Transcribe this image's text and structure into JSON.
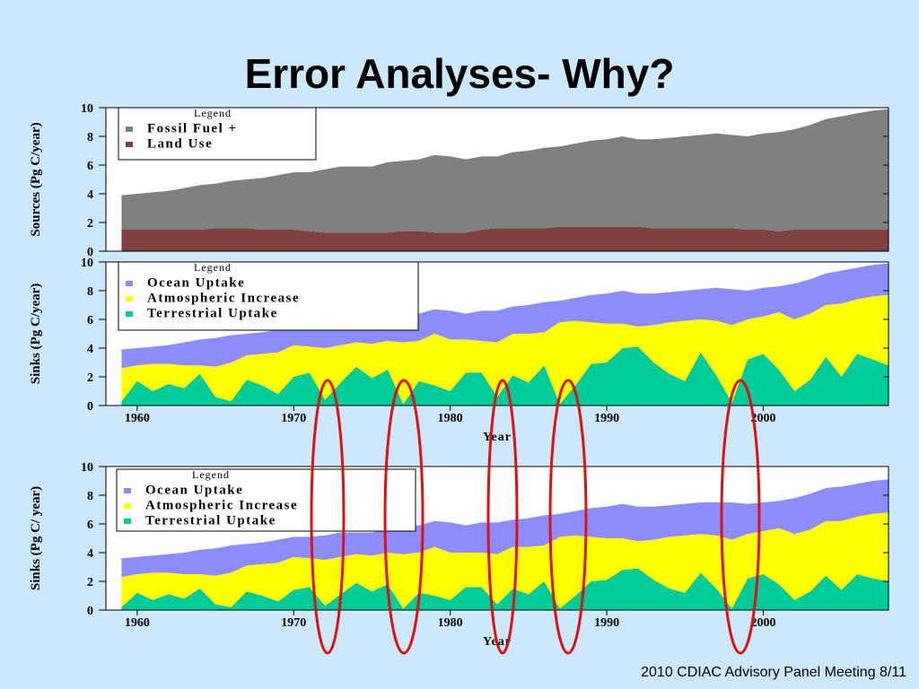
{
  "title": "Error Analyses- Why?",
  "footer": "2010 CDIAC Advisory Panel Meeting 8/11",
  "chart_data": [
    {
      "type": "area",
      "stacked": true,
      "ylabel": "Sources (Pg C/year)",
      "legend_title": "Legend",
      "x": [
        1959,
        1960,
        1961,
        1962,
        1963,
        1964,
        1965,
        1966,
        1967,
        1968,
        1969,
        1970,
        1971,
        1972,
        1973,
        1974,
        1975,
        1976,
        1977,
        1978,
        1979,
        1980,
        1981,
        1982,
        1983,
        1984,
        1985,
        1986,
        1987,
        1988,
        1989,
        1990,
        1991,
        1992,
        1993,
        1994,
        1995,
        1996,
        1997,
        1998,
        1999,
        2000,
        2001,
        2002,
        2003,
        2004,
        2005,
        2006,
        2007,
        2008
      ],
      "xlim": [
        1958,
        2008
      ],
      "ylim": [
        0,
        10
      ],
      "yticks": [
        0,
        2,
        4,
        6,
        8,
        10
      ],
      "series": [
        {
          "name": "Fossil Fuel +",
          "color": "#808080",
          "values": [
            2.4,
            2.5,
            2.6,
            2.7,
            2.9,
            3.1,
            3.1,
            3.3,
            3.4,
            3.6,
            3.8,
            4.0,
            4.1,
            4.4,
            4.6,
            4.6,
            4.6,
            4.9,
            4.9,
            5.0,
            5.4,
            5.3,
            5.1,
            5.1,
            5.0,
            5.3,
            5.4,
            5.6,
            5.6,
            5.8,
            6.0,
            6.1,
            6.3,
            6.1,
            6.2,
            6.3,
            6.4,
            6.5,
            6.6,
            6.5,
            6.5,
            6.7,
            6.9,
            7.0,
            7.3,
            7.7,
            7.9,
            8.1,
            8.3,
            8.4
          ]
        },
        {
          "name": "Land Use",
          "color": "#7f4040",
          "values": [
            1.5,
            1.5,
            1.5,
            1.5,
            1.5,
            1.5,
            1.6,
            1.6,
            1.6,
            1.5,
            1.5,
            1.5,
            1.4,
            1.3,
            1.3,
            1.3,
            1.3,
            1.3,
            1.4,
            1.4,
            1.3,
            1.3,
            1.3,
            1.5,
            1.6,
            1.6,
            1.6,
            1.6,
            1.7,
            1.7,
            1.7,
            1.7,
            1.7,
            1.7,
            1.6,
            1.6,
            1.6,
            1.6,
            1.6,
            1.6,
            1.5,
            1.5,
            1.4,
            1.5,
            1.5,
            1.5,
            1.5,
            1.5,
            1.5,
            1.5
          ]
        }
      ]
    },
    {
      "type": "area",
      "stacked": true,
      "ylabel": "Sinks (Pg C/year)",
      "xlabel": "Year",
      "legend_title": "Legend",
      "x": [
        1959,
        1960,
        1961,
        1962,
        1963,
        1964,
        1965,
        1966,
        1967,
        1968,
        1969,
        1970,
        1971,
        1972,
        1973,
        1974,
        1975,
        1976,
        1977,
        1978,
        1979,
        1980,
        1981,
        1982,
        1983,
        1984,
        1985,
        1986,
        1987,
        1988,
        1989,
        1990,
        1991,
        1992,
        1993,
        1994,
        1995,
        1996,
        1997,
        1998,
        1999,
        2000,
        2001,
        2002,
        2003,
        2004,
        2005,
        2006,
        2007,
        2008
      ],
      "xlim": [
        1958,
        2008
      ],
      "xticks": [
        1960,
        1970,
        1980,
        1990,
        2000
      ],
      "ylim": [
        0,
        10
      ],
      "yticks": [
        0,
        2,
        4,
        6,
        8,
        10
      ],
      "series": [
        {
          "name": "Ocean Uptake",
          "color": "#8c8cff",
          "values": [
            1.3,
            1.2,
            1.2,
            1.3,
            1.6,
            1.8,
            2.0,
            1.9,
            1.5,
            1.5,
            1.6,
            1.3,
            1.4,
            1.7,
            1.7,
            1.5,
            1.6,
            1.7,
            1.9,
            1.9,
            1.7,
            2.0,
            1.8,
            2.1,
            2.2,
            1.9,
            2.0,
            2.1,
            1.5,
            1.6,
            1.9,
            2.1,
            2.3,
            2.3,
            2.2,
            2.1,
            2.1,
            2.1,
            2.3,
            2.5,
            2.0,
            2.0,
            1.8,
            2.5,
            2.4,
            2.2,
            2.3,
            2.2,
            2.2,
            2.2
          ]
        },
        {
          "name": "Atmospheric Increase",
          "color": "#ffff00",
          "values": [
            2.3,
            1.1,
            1.9,
            1.4,
            1.6,
            0.6,
            2.1,
            2.7,
            1.7,
            2.2,
            2.9,
            2.2,
            1.8,
            3.6,
            2.6,
            1.7,
            2.4,
            2.0,
            4.3,
            2.8,
            3.6,
            3.6,
            2.3,
            2.2,
            3.8,
            2.9,
            3.4,
            2.3,
            5.7,
            4.5,
            2.9,
            2.7,
            1.7,
            1.4,
            2.6,
            3.6,
            4.2,
            2.3,
            3.8,
            5.4,
            2.8,
            2.6,
            4.0,
            5.0,
            4.6,
            3.6,
            5.1,
            3.8,
            4.4,
            4.9
          ]
        },
        {
          "name": "Terrestrial Uptake",
          "color": "#00cc99",
          "values": [
            0.3,
            1.7,
            1.0,
            1.5,
            1.2,
            2.2,
            0.6,
            0.3,
            1.8,
            1.4,
            0.8,
            2.0,
            2.3,
            0.4,
            1.6,
            2.7,
            1.9,
            2.5,
            0.1,
            1.7,
            1.4,
            1.0,
            2.3,
            2.3,
            0.6,
            2.1,
            1.6,
            2.8,
            0.1,
            1.4,
            2.9,
            3.0,
            4.0,
            4.1,
            3.0,
            2.2,
            1.7,
            3.7,
            2.1,
            0.2,
            3.2,
            3.6,
            2.5,
            1.0,
            1.8,
            3.4,
            2.0,
            3.6,
            3.2,
            2.8
          ]
        }
      ]
    },
    {
      "type": "area",
      "stacked": true,
      "ylabel": "Sinks (Pg C/ year)",
      "xlabel": "Year",
      "legend_title": "Legend",
      "x": [
        1959,
        1960,
        1961,
        1962,
        1963,
        1964,
        1965,
        1966,
        1967,
        1968,
        1969,
        1970,
        1971,
        1972,
        1973,
        1974,
        1975,
        1976,
        1977,
        1978,
        1979,
        1980,
        1981,
        1982,
        1983,
        1984,
        1985,
        1986,
        1987,
        1988,
        1989,
        1990,
        1991,
        1992,
        1993,
        1994,
        1995,
        1996,
        1997,
        1998,
        1999,
        2000,
        2001,
        2002,
        2003,
        2004,
        2005,
        2006,
        2007,
        2008
      ],
      "xlim": [
        1958,
        2008
      ],
      "xticks": [
        1960,
        1970,
        1980,
        1990,
        2000
      ],
      "ylim": [
        0,
        10
      ],
      "yticks": [
        0,
        2,
        4,
        6,
        8,
        10
      ],
      "series": [
        {
          "name": "Ocean Uptake",
          "color": "#8c8cff",
          "values": [
            1.3,
            1.2,
            1.2,
            1.3,
            1.5,
            1.7,
            1.9,
            1.9,
            1.5,
            1.5,
            1.6,
            1.4,
            1.5,
            1.7,
            1.7,
            1.5,
            1.6,
            1.7,
            1.9,
            1.9,
            1.8,
            2.1,
            1.9,
            2.1,
            2.2,
            1.9,
            2.0,
            2.1,
            1.6,
            1.7,
            2.0,
            2.2,
            2.4,
            2.4,
            2.3,
            2.2,
            2.2,
            2.2,
            2.3,
            2.6,
            2.1,
            2.0,
            1.9,
            2.5,
            2.5,
            2.3,
            2.4,
            2.3,
            2.3,
            2.3
          ]
        },
        {
          "name": "Atmospheric Increase",
          "color": "#ffff00",
          "values": [
            2.1,
            1.3,
            1.9,
            1.5,
            1.7,
            1.0,
            2.0,
            2.4,
            1.8,
            2.2,
            2.7,
            2.3,
            2.0,
            3.2,
            2.6,
            2.0,
            2.5,
            2.2,
            3.8,
            2.8,
            3.4,
            3.3,
            2.4,
            2.4,
            3.5,
            2.9,
            3.3,
            2.5,
            5.0,
            4.2,
            3.1,
            2.9,
            2.2,
            1.9,
            2.8,
            3.6,
            4.0,
            2.7,
            3.7,
            4.8,
            3.1,
            3.0,
            3.9,
            4.6,
            4.3,
            3.8,
            4.8,
            4.0,
            4.5,
            4.8
          ]
        },
        {
          "name": "Terrestrial Uptake",
          "color": "#00cc99",
          "values": [
            0.2,
            1.2,
            0.7,
            1.1,
            0.8,
            1.5,
            0.4,
            0.2,
            1.3,
            1.0,
            0.6,
            1.4,
            1.6,
            0.3,
            1.1,
            1.9,
            1.3,
            1.8,
            0.1,
            1.2,
            1.0,
            0.7,
            1.6,
            1.6,
            0.4,
            1.5,
            1.1,
            2.0,
            0.1,
            1.0,
            2.0,
            2.1,
            2.8,
            2.9,
            2.1,
            1.5,
            1.2,
            2.6,
            1.5,
            0.1,
            2.2,
            2.5,
            1.8,
            0.7,
            1.3,
            2.4,
            1.4,
            2.5,
            2.2,
            2.0
          ]
        }
      ]
    }
  ]
}
